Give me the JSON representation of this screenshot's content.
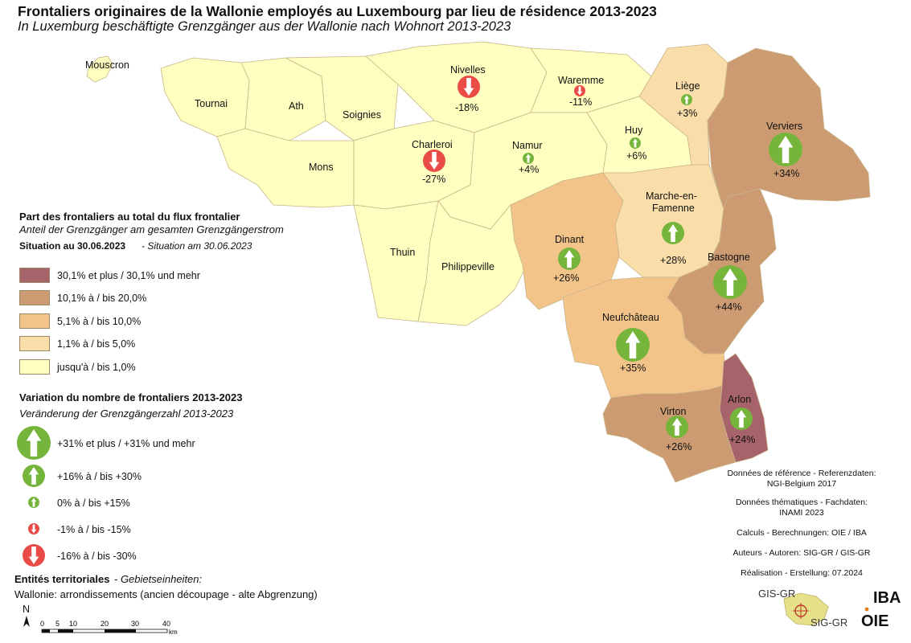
{
  "title": "Frontaliers originaires de la Wallonie employés au Luxembourg par lieu de résidence 2013-2023",
  "subtitle": "In Luxemburg beschäftigte Grenzgänger aus der Wallonie nach Wohnort 2013-2023",
  "colors": {
    "share_30_plus": "#a7636a",
    "share_10_20": "#cd9b72",
    "share_5_10": "#f3c48a",
    "share_1_5": "#f9deaa",
    "share_up_1": "#ffffc0",
    "arrow_up": "#76b53b",
    "arrow_down": "#e94b47"
  },
  "regions": [
    {
      "name": "Mouscron",
      "share_class": "share_up_1",
      "change": ""
    },
    {
      "name": "Tournai",
      "share_class": "share_up_1",
      "change": ""
    },
    {
      "name": "Ath",
      "share_class": "share_up_1",
      "change": ""
    },
    {
      "name": "Soignies",
      "share_class": "share_up_1",
      "change": ""
    },
    {
      "name": "Mons",
      "share_class": "share_up_1",
      "change": ""
    },
    {
      "name": "Charleroi",
      "share_class": "share_up_1",
      "change": "-27%",
      "arrow": "down_large"
    },
    {
      "name": "Thuin",
      "share_class": "share_up_1",
      "change": ""
    },
    {
      "name": "Philippeville",
      "share_class": "share_up_1",
      "change": ""
    },
    {
      "name": "Nivelles",
      "share_class": "share_up_1",
      "change": "-18%",
      "arrow": "down_large"
    },
    {
      "name": "Waremme",
      "share_class": "share_up_1",
      "change": "-11%",
      "arrow": "down_small"
    },
    {
      "name": "Namur",
      "share_class": "share_up_1",
      "change": "+4%",
      "arrow": "up_small"
    },
    {
      "name": "Huy",
      "share_class": "share_up_1",
      "change": "+6%",
      "arrow": "up_small"
    },
    {
      "name": "Liège",
      "share_class": "share_1_5",
      "change": "+3%",
      "arrow": "up_small"
    },
    {
      "name": "Verviers",
      "share_class": "share_10_20",
      "change": "+34%",
      "arrow": "up_xlarge"
    },
    {
      "name": "Marche-en-\nFamenne",
      "share_class": "share_5_10",
      "change": "+28%",
      "arrow": "up_medium"
    },
    {
      "name": "Dinant",
      "share_class": "share_5_10",
      "change": "+26%",
      "arrow": "up_medium"
    },
    {
      "name": "Bastogne",
      "share_class": "share_10_20",
      "change": "+44%",
      "arrow": "up_xlarge"
    },
    {
      "name": "Neufchâteau",
      "share_class": "share_5_10",
      "change": "+35%",
      "arrow": "up_xlarge"
    },
    {
      "name": "Virton",
      "share_class": "share_10_20",
      "change": "+26%",
      "arrow": "up_medium"
    },
    {
      "name": "Arlon",
      "share_class": "share_30_plus",
      "change": "+24%",
      "arrow": "up_medium"
    }
  ],
  "legend": {
    "share_title": "Part des frontaliers au total du flux frontalier",
    "share_subtitle": "Anteil der Grenzgänger am gesamten Grenzgängerstrom",
    "situation": "Situation au 30.06.2023",
    "situation_de": " - Situation am 30.06.2023",
    "share_classes": [
      {
        "key": "share_30_plus",
        "label": "30,1% et plus / 30,1% und mehr"
      },
      {
        "key": "share_10_20",
        "label": "10,1% à / bis 20,0%"
      },
      {
        "key": "share_5_10",
        "label": "5,1% à / bis 10,0%"
      },
      {
        "key": "share_1_5",
        "label": "1,1% à / bis 5,0%"
      },
      {
        "key": "share_up_1",
        "label": "jusqu'à / bis 1,0%"
      }
    ],
    "variation_title": "Variation du nombre de frontaliers 2013-2023",
    "variation_subtitle": "Veränderung der Grenzgängerzahl 2013-2023",
    "variation_classes": [
      {
        "arrow": "up_xlarge",
        "label": "+31% et plus / +31% und mehr"
      },
      {
        "arrow": "up_medium",
        "label": "+16% à / bis +30%"
      },
      {
        "arrow": "up_small",
        "label": "0% à / bis +15%"
      },
      {
        "arrow": "down_small",
        "label": "-1% à / bis -15%"
      },
      {
        "arrow": "down_large",
        "label": "-16% à / bis -30%"
      }
    ],
    "entities_title": "Entités territoriales",
    "entities_de": "  - Gebietseinheiten:",
    "entities_text": "Wallonie: arrondissements (ancien découpage - alte Abgrenzung)"
  },
  "scale": {
    "north": "N",
    "ticks": [
      "0",
      "5",
      "10",
      "20",
      "30",
      "40"
    ],
    "unit": "km"
  },
  "credits": {
    "ref": "Données de référence - Referenzdaten:",
    "ref2": "NGI-Belgium 2017",
    "theme": "Données thématiques - Fachdaten:",
    "theme2": "INAMI 2023",
    "calc": "Calculs - Berechnungen: OIE / IBA",
    "authors": "Auteurs - Autoren: SIG-GR / GIS-GR",
    "real": "Réalisation - Erstellung: 07.2024"
  },
  "logos": {
    "gis": "GIS-GR",
    "sig": "SIG-GR",
    "iba": "IBA",
    "oie": "OIE"
  }
}
